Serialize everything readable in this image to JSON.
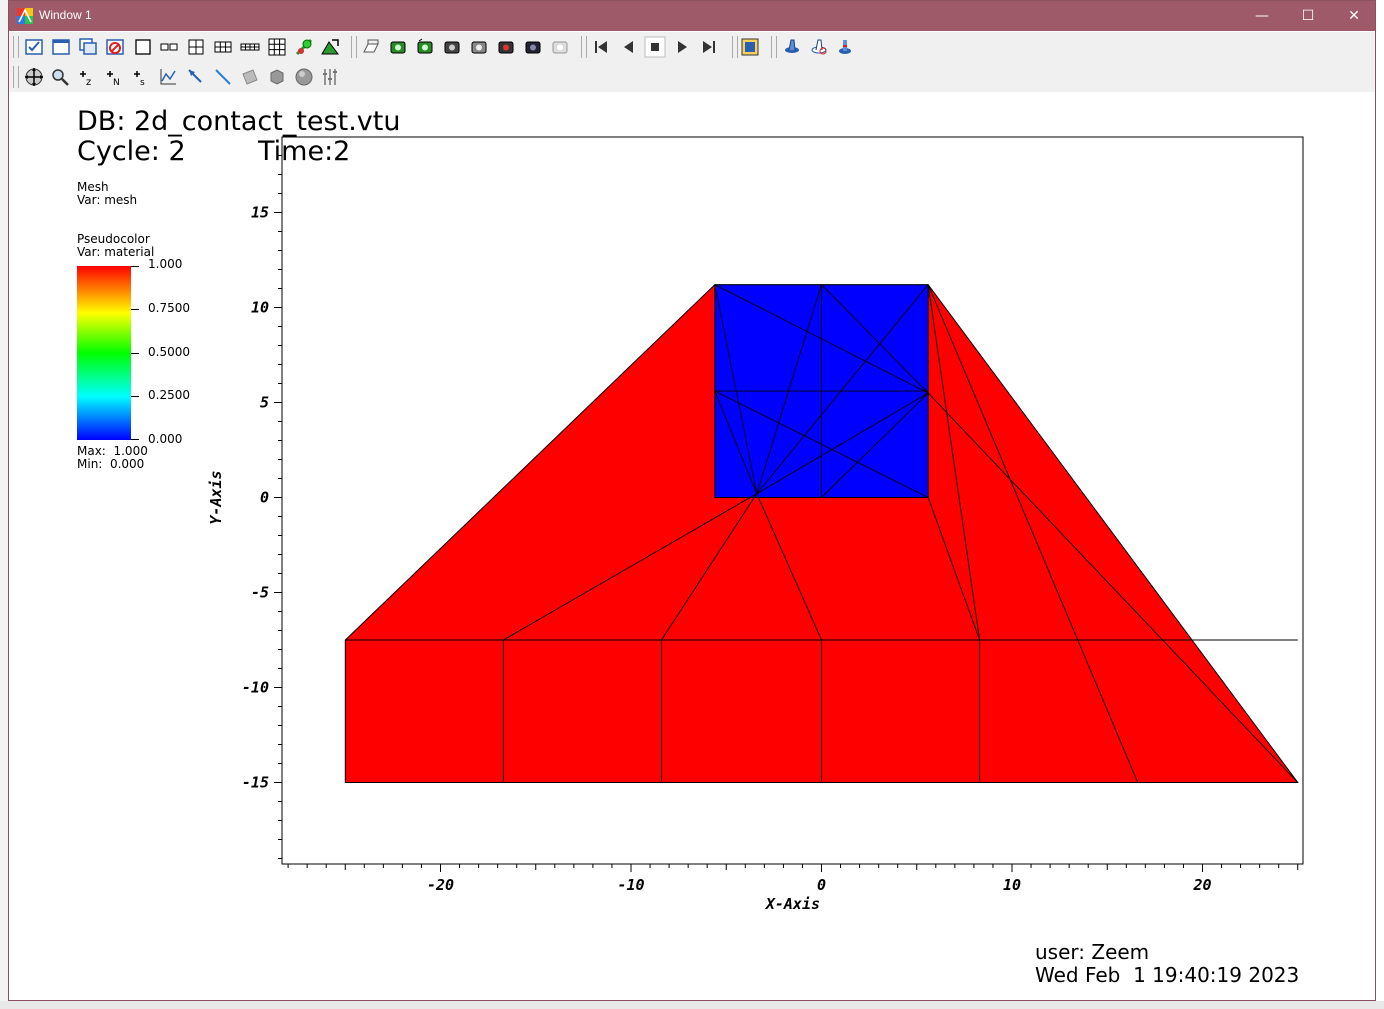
{
  "window": {
    "title": "Window 1",
    "minimize_glyph": "—",
    "maximize_glyph": "☐",
    "close_glyph": "✕"
  },
  "toolbar1": {
    "icons": [
      "active-window-icon",
      "add-window-icon",
      "clone-window-icon",
      "delete-window-icon",
      "layout-1x1-icon",
      "layout-1x2-icon",
      "layout-2x2-icon",
      "layout-2x3-icon",
      "layout-2x4-icon",
      "layout-3x3-icon",
      "lock-view-icon",
      "lock-time-icon",
      "auto-update-icon",
      "draw-plots-icon",
      "redraw-icon",
      "hide-plots-icon",
      "delete-plots-icon",
      "clear-all-icon",
      "camera-icon",
      "query-icon",
      "frame-first-icon",
      "frame-back-icon",
      "stop-icon",
      "play-icon",
      "frame-last-icon",
      "invert-background-icon",
      "spin-icon",
      "interactor-icon",
      "lock-icon"
    ]
  },
  "toolbar2": {
    "icons": [
      "navigate-icon",
      "zoom-icon",
      "zone-pick-icon",
      "node-pick-icon",
      "spreadsheet-pick-icon",
      "lineout-icon",
      "point-tool-icon",
      "line-tool-icon",
      "plane-tool-icon",
      "box-tool-icon",
      "sphere-tool-icon",
      "axis-array-icon"
    ]
  },
  "annotation": {
    "db_label": "DB: 2d_contact_test.vtu",
    "cycle_label": "Cycle: 2",
    "time_label": "Time:2",
    "user_label": "user: Zeem",
    "date_label": "Wed Feb  1 19:40:19 2023"
  },
  "legend": {
    "mesh_title": "Mesh",
    "mesh_var": "Var: mesh",
    "pc_title": "Pseudocolor",
    "pc_var": "Var: material",
    "ticks": [
      "1.000",
      "0.7500",
      "0.5000",
      "0.2500",
      "0.000"
    ],
    "max_label": "Max:  1.000",
    "min_label": "Min:  0.000"
  },
  "colors": {
    "material_1": "#ff0000",
    "material_0": "#0000ff",
    "titlebar": "#9e5a68"
  },
  "chart_data": {
    "type": "mesh",
    "xlabel": "X-Axis",
    "ylabel": "Y-Axis",
    "xlim": [
      -28,
      25.5
    ],
    "ylim": [
      -19.8,
      18.4
    ],
    "x_ticks": [
      -20,
      -10,
      0,
      10,
      20
    ],
    "y_ticks": [
      15,
      10,
      5,
      0,
      -5,
      -10,
      -15
    ],
    "regions": [
      {
        "material": 1,
        "color": "#ff0000",
        "outline": [
          [
            -25,
            -7.5
          ],
          [
            -5.6,
            11.2
          ],
          [
            5.6,
            11.2
          ],
          [
            25,
            -15
          ],
          [
            -25,
            -15
          ]
        ]
      },
      {
        "material": 0,
        "color": "#0000ff",
        "outline": [
          [
            -5.6,
            0
          ],
          [
            5.6,
            0
          ],
          [
            5.6,
            11.2
          ],
          [
            -5.6,
            11.2
          ]
        ]
      }
    ],
    "edges": [
      [
        [
          -25,
          -7.5
        ],
        [
          25,
          -7.5
        ]
      ],
      [
        [
          -16.7,
          -7.5
        ],
        [
          -16.7,
          -15
        ]
      ],
      [
        [
          -8.4,
          -7.5
        ],
        [
          -8.4,
          -15
        ]
      ],
      [
        [
          0,
          -7.5
        ],
        [
          0,
          -15
        ]
      ],
      [
        [
          8.3,
          -7.5
        ],
        [
          8.3,
          -15
        ]
      ],
      [
        [
          -3.4,
          0.2
        ],
        [
          -16.7,
          -7.5
        ]
      ],
      [
        [
          -3.4,
          0.2
        ],
        [
          -8.4,
          -7.5
        ]
      ],
      [
        [
          -3.4,
          0.2
        ],
        [
          0,
          -7.5
        ]
      ],
      [
        [
          5.6,
          0
        ],
        [
          8.3,
          -7.5
        ]
      ],
      [
        [
          5.6,
          11.2
        ],
        [
          8.3,
          -7.5
        ]
      ],
      [
        [
          5.6,
          11.2
        ],
        [
          16.6,
          -15
        ]
      ],
      [
        [
          5.6,
          5.5
        ],
        [
          25,
          -15
        ]
      ],
      [
        [
          0,
          0
        ],
        [
          0,
          11.2
        ]
      ],
      [
        [
          -5.6,
          5.6
        ],
        [
          5.6,
          5.6
        ]
      ],
      [
        [
          0,
          11.2
        ],
        [
          5.6,
          5.5
        ]
      ],
      [
        [
          -5.6,
          11.2
        ],
        [
          5.6,
          5.5
        ]
      ],
      [
        [
          -5.6,
          11.2
        ],
        [
          -3.4,
          0.2
        ]
      ],
      [
        [
          -5.6,
          5.6
        ],
        [
          -3.4,
          0.2
        ]
      ],
      [
        [
          0,
          11.2
        ],
        [
          -3.4,
          0.2
        ]
      ],
      [
        [
          5.6,
          11.2
        ],
        [
          -3.4,
          0.2
        ]
      ],
      [
        [
          -5.6,
          5.6
        ],
        [
          5.6,
          0
        ]
      ],
      [
        [
          -3.4,
          0.2
        ],
        [
          5.6,
          5.5
        ]
      ],
      [
        [
          0,
          0
        ],
        [
          5.6,
          5.5
        ]
      ]
    ]
  }
}
